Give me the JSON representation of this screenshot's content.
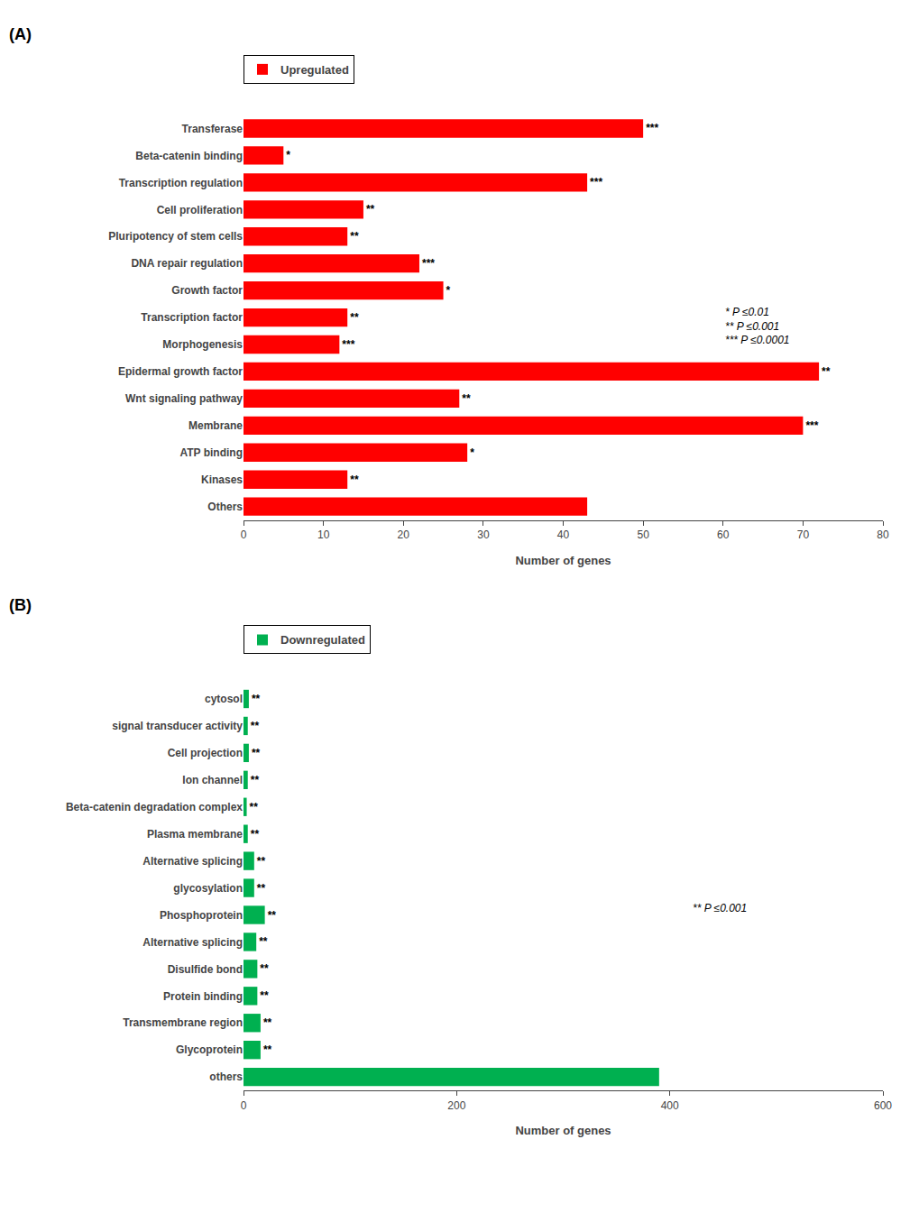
{
  "chart_data": [
    {
      "type": "bar",
      "orientation": "horizontal",
      "title": "(A)",
      "categories": [
        "Transferase",
        "Beta-catenin binding",
        "Transcription regulation",
        "Cell proliferation",
        "Pluripotency of stem cells",
        "DNA repair regulation",
        "Growth factor",
        "Transcription factor",
        "Morphogenesis",
        "Epidermal growth factor",
        "Wnt signaling pathway",
        "Membrane",
        "ATP binding",
        "Kinases",
        "Others"
      ],
      "series": [
        {
          "name": "Upregulated",
          "color": "#FF0000",
          "values": [
            50,
            5,
            43,
            15,
            13,
            22,
            25,
            13,
            12,
            72,
            27,
            70,
            28,
            13,
            43
          ]
        }
      ],
      "bar_labels": [
        "***",
        "*",
        "***",
        "**",
        "**",
        "***",
        "*",
        "**",
        "***",
        "**",
        "**",
        "***",
        "*",
        "**",
        null
      ],
      "xlabel": "Number of genes",
      "xlim": [
        0,
        80
      ],
      "xticks": [
        0,
        10,
        20,
        30,
        40,
        50,
        60,
        70,
        80
      ],
      "annotations": [
        "* P ≤0.01\n** P ≤0.001\n*** P ≤0.0001"
      ],
      "legend": "upper left",
      "grid": false
    },
    {
      "type": "bar",
      "orientation": "horizontal",
      "title": "(B)",
      "categories": [
        "cytosol",
        "signal transducer activity",
        "Cell projection",
        "Ion channel",
        "Beta-catenin degradation complex",
        "Plasma membrane",
        "Alternative splicing",
        "glycosylation",
        "Phosphoprotein",
        "Alternative splicing",
        "Disulfide bond",
        "Protein binding",
        "Transmembrane region",
        "Glycoprotein",
        "others"
      ],
      "series": [
        {
          "name": "Downregulated",
          "color": "#00B050",
          "values": [
            5,
            4,
            5,
            4,
            3,
            4,
            10,
            10,
            20,
            12,
            13,
            13,
            16,
            16,
            390
          ]
        }
      ],
      "bar_labels": [
        "**",
        "**",
        "**",
        "**",
        "**",
        "**",
        "**",
        "**",
        "**",
        "**",
        "**",
        "**",
        "**",
        "**",
        null
      ],
      "xlabel": "Number of genes",
      "xlim": [
        0,
        600
      ],
      "xticks": [
        0,
        200,
        400,
        600
      ],
      "annotations": [
        "** P ≤0.001"
      ],
      "legend": "upper left",
      "grid": false
    }
  ]
}
